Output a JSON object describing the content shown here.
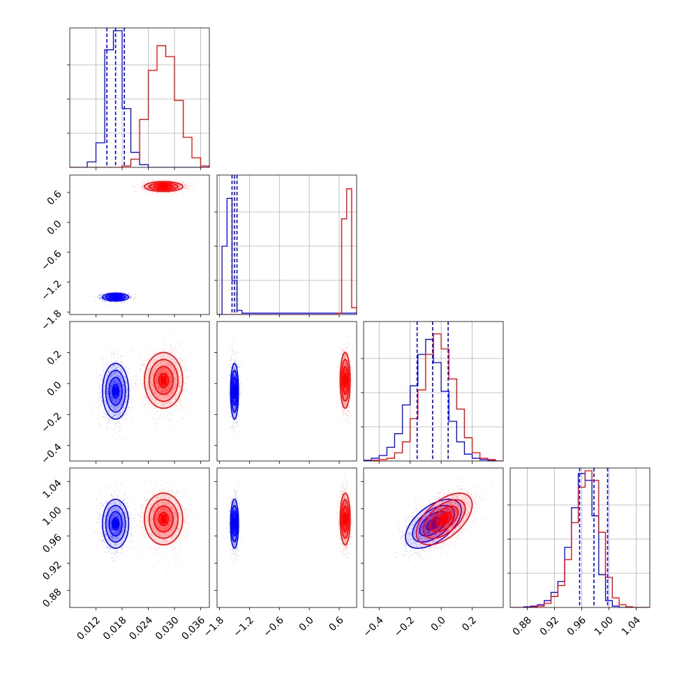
{
  "chart_data": {
    "type": "corner",
    "title": "",
    "parameters": [
      {
        "range": [
          0.006,
          0.038
        ],
        "ticks": [
          0.012,
          0.018,
          0.024,
          0.03,
          0.036
        ],
        "tick_labels": [
          "0.012",
          "0.018",
          "0.024",
          "0.030",
          "0.036"
        ]
      },
      {
        "range": [
          -1.85,
          0.95
        ],
        "ticks": [
          -1.8,
          -1.2,
          -0.6,
          0.0,
          0.6
        ],
        "tick_labels": [
          "−1.8",
          "−1.2",
          "−0.6",
          "0.0",
          "0.6"
        ]
      },
      {
        "range": [
          -0.5,
          0.4
        ],
        "ticks": [
          -0.4,
          -0.2,
          0.0,
          0.2
        ],
        "tick_labels": [
          "−0.4",
          "−0.2",
          "0.0",
          "0.2"
        ]
      },
      {
        "range": [
          0.855,
          1.06
        ],
        "ticks": [
          0.88,
          0.92,
          0.96,
          1.0,
          1.04
        ],
        "tick_labels": [
          "0.88",
          "0.92",
          "0.96",
          "1.00",
          "1.04"
        ]
      }
    ],
    "series": [
      {
        "color": "#0000ff",
        "means": [
          0.0165,
          -1.5,
          -0.05,
          0.978
        ],
        "stds": [
          0.0015,
          0.04,
          0.09,
          0.018
        ],
        "quantiles": [
          [
            0.0145,
            0.0165,
            0.0185
          ],
          [
            -1.55,
            -1.5,
            -1.45
          ],
          [
            -0.155,
            -0.055,
            0.045
          ],
          [
            0.957,
            0.978,
            0.998
          ]
        ],
        "corr": {
          "2-3": 0.55
        }
      },
      {
        "color": "#ff0000",
        "means": [
          0.0275,
          0.72,
          0.02,
          0.985
        ],
        "stds": [
          0.0022,
          0.05,
          0.09,
          0.019
        ],
        "quantiles": null,
        "corr": {
          "2-3": 0.55
        }
      }
    ],
    "histograms": {
      "0": {
        "edges": [
          0.006,
          0.008,
          0.01,
          0.012,
          0.014,
          0.016,
          0.018,
          0.02,
          0.022,
          0.024,
          0.026,
          0.028,
          0.03,
          0.032,
          0.034,
          0.036,
          0.038
        ],
        "blue": [
          0,
          0,
          0.04,
          0.18,
          0.86,
          1.0,
          0.43,
          0.11,
          0.02,
          0,
          0,
          0,
          0,
          0,
          0,
          0
        ],
        "red": [
          0,
          0,
          0,
          0,
          0,
          0,
          0.01,
          0.06,
          0.35,
          0.71,
          0.89,
          0.81,
          0.49,
          0.22,
          0.07,
          0.01
        ]
      },
      "1": {
        "edges": [
          -1.85,
          -1.75,
          -1.65,
          -1.55,
          -1.45,
          -1.35,
          -1.25,
          -1.15,
          -1.05,
          -0.95,
          -0.85,
          -0.75,
          -0.65,
          -0.55,
          -0.45,
          -0.35,
          -0.25,
          -0.15,
          -0.05,
          0.05,
          0.15,
          0.25,
          0.35,
          0.45,
          0.55,
          0.65,
          0.75,
          0.85,
          0.95
        ],
        "blue": [
          0,
          0.5,
          0.85,
          0.25,
          0.03,
          0.01,
          0.01,
          0.01,
          0.01,
          0.01,
          0.01,
          0.01,
          0.01,
          0.01,
          0.01,
          0.01,
          0.01,
          0.01,
          0.01,
          0.01,
          0.01,
          0.01,
          0.01,
          0.01,
          0.01,
          0.01,
          0.01,
          0.01
        ],
        "red": [
          0,
          0,
          0,
          0,
          0,
          0,
          0,
          0,
          0,
          0,
          0,
          0,
          0,
          0,
          0,
          0,
          0,
          0,
          0,
          0,
          0,
          0,
          0,
          0,
          0.01,
          0.7,
          0.92,
          0.05
        ]
      },
      "2": {
        "edges": [
          -0.5,
          -0.45,
          -0.4,
          -0.35,
          -0.3,
          -0.25,
          -0.2,
          -0.15,
          -0.1,
          -0.05,
          0.0,
          0.05,
          0.1,
          0.15,
          0.2,
          0.25,
          0.3,
          0.35,
          0.4
        ],
        "blue": [
          0.005,
          0.02,
          0.04,
          0.1,
          0.2,
          0.41,
          0.55,
          0.78,
          0.89,
          0.72,
          0.51,
          0.29,
          0.14,
          0.05,
          0.02,
          0.01,
          0.005,
          0
        ],
        "red": [
          0,
          0.005,
          0.01,
          0.02,
          0.06,
          0.14,
          0.31,
          0.52,
          0.78,
          0.93,
          0.82,
          0.6,
          0.38,
          0.17,
          0.06,
          0.02,
          0.01,
          0
        ]
      },
      "3": {
        "edges": [
          0.855,
          0.865,
          0.875,
          0.885,
          0.895,
          0.905,
          0.915,
          0.925,
          0.935,
          0.945,
          0.955,
          0.965,
          0.975,
          0.985,
          0.995,
          1.005,
          1.015,
          1.025,
          1.035,
          1.045,
          1.055,
          1.06
        ],
        "blue": [
          0,
          0,
          0.005,
          0.01,
          0.02,
          0.05,
          0.11,
          0.19,
          0.44,
          0.73,
          0.98,
          0.93,
          0.67,
          0.24,
          0.05,
          0.01,
          0,
          0,
          0,
          0,
          0
        ],
        "red": [
          0,
          0,
          0,
          0.005,
          0.01,
          0.03,
          0.08,
          0.16,
          0.35,
          0.62,
          0.88,
          1.0,
          0.93,
          0.55,
          0.22,
          0.07,
          0.02,
          0.005,
          0,
          0,
          0
        ]
      }
    }
  }
}
